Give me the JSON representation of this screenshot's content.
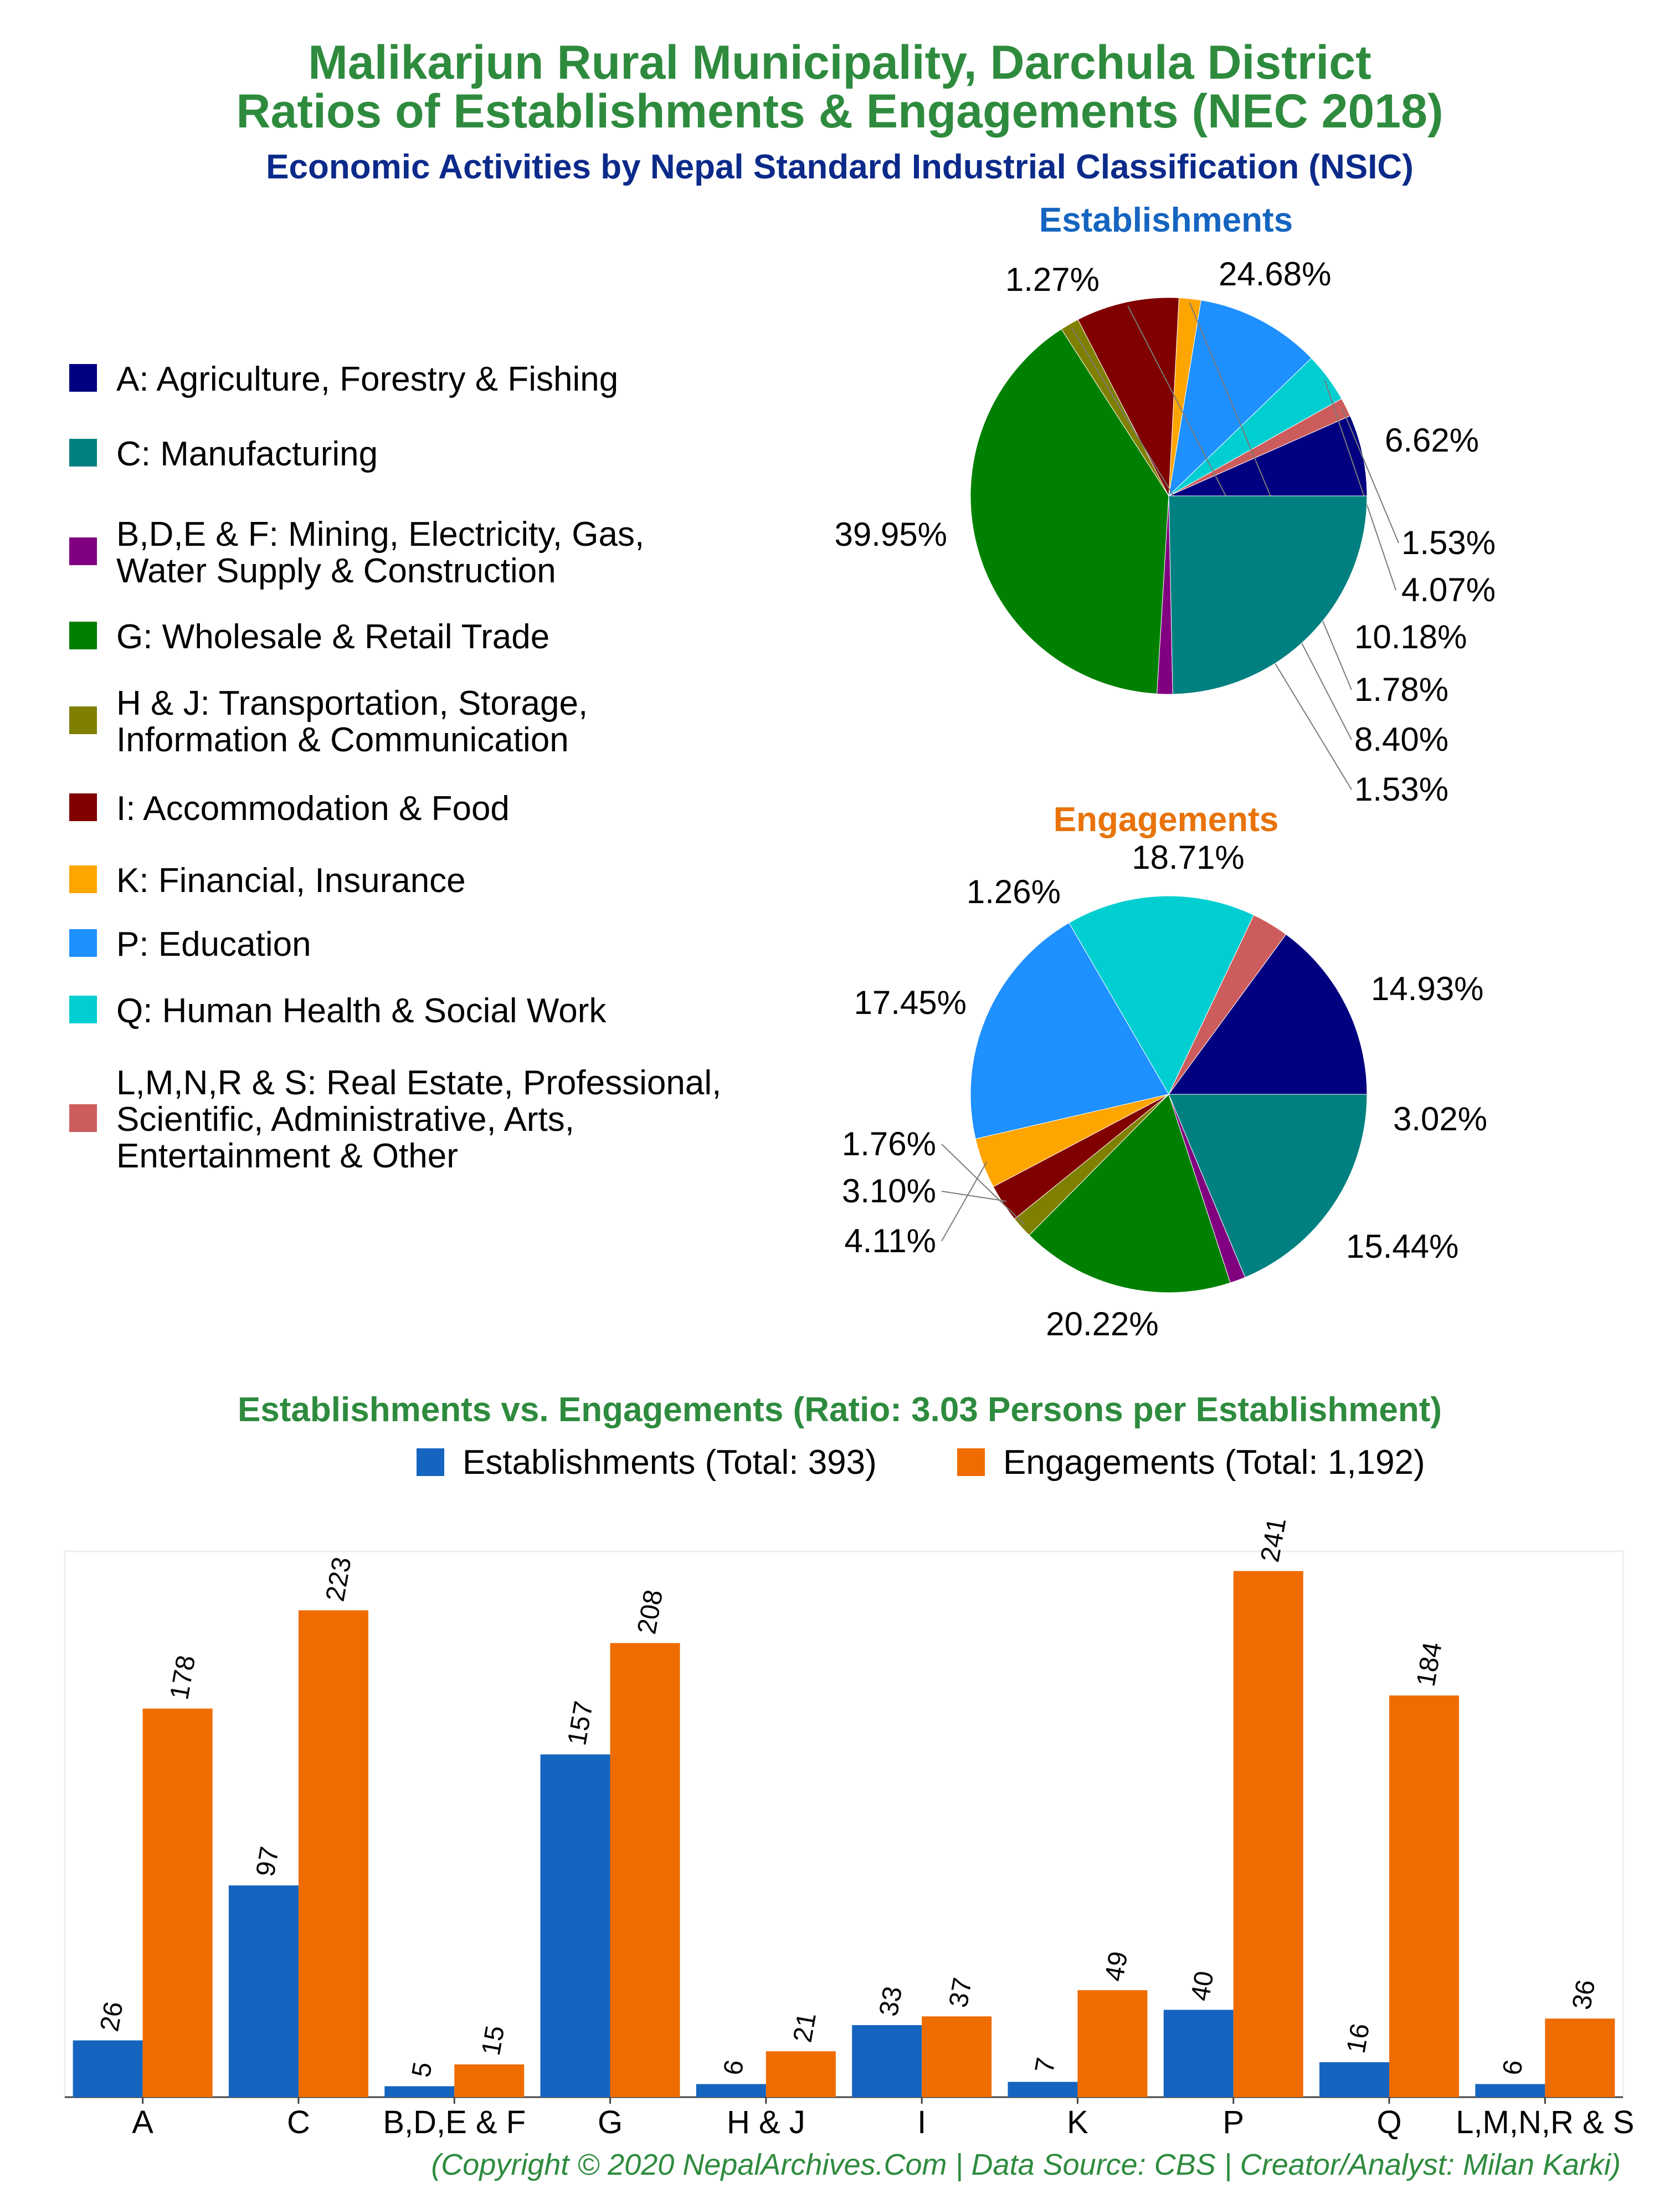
{
  "header": {
    "title_line1": "Malikarjun Rural Municipality, Darchula District",
    "title_line2": "Ratios of Establishments & Engagements (NEC 2018)",
    "subtitle": "Economic Activities by Nepal Standard Industrial Classification (NSIC)"
  },
  "colors": {
    "title": "#2e8b3e",
    "subtitle": "#0b2a8a",
    "establishments_title": "#1565c0",
    "engagements_title": "#e8730a",
    "bar_establishments": "#1565c0",
    "bar_engagements": "#ef6c00"
  },
  "legend": {
    "items": [
      {
        "code": "A",
        "lines": [
          "A: Agriculture, Forestry & Fishing"
        ],
        "color": "#000080"
      },
      {
        "code": "C",
        "lines": [
          "C: Manufacturing"
        ],
        "color": "#008080"
      },
      {
        "code": "BDEF",
        "lines": [
          "B,D,E & F: Mining, Electricity, Gas,",
          "Water Supply & Construction"
        ],
        "color": "#800080"
      },
      {
        "code": "G",
        "lines": [
          "G: Wholesale & Retail Trade"
        ],
        "color": "#008000"
      },
      {
        "code": "HJ",
        "lines": [
          "H & J: Transportation, Storage,",
          "Information & Communication"
        ],
        "color": "#808000"
      },
      {
        "code": "I",
        "lines": [
          "I: Accommodation & Food"
        ],
        "color": "#800000"
      },
      {
        "code": "K",
        "lines": [
          "K: Financial, Insurance"
        ],
        "color": "#ffa500"
      },
      {
        "code": "P",
        "lines": [
          "P: Education"
        ],
        "color": "#1e90ff"
      },
      {
        "code": "Q",
        "lines": [
          "Q: Human Health & Social Work"
        ],
        "color": "#00ced1"
      },
      {
        "code": "LMNRS",
        "lines": [
          "L,M,N,R & S: Real Estate, Professional,",
          "Scientific, Administrative, Arts,",
          "Entertainment & Other"
        ],
        "color": "#cd5c5c"
      }
    ]
  },
  "chart_data": [
    {
      "type": "pie",
      "title": "Establishments",
      "slices": [
        {
          "category": "A",
          "value": 6.62,
          "label": "6.62%"
        },
        {
          "category": "LMNRS",
          "value": 1.53,
          "label": "1.53%"
        },
        {
          "category": "Q",
          "value": 4.07,
          "label": "4.07%"
        },
        {
          "category": "P",
          "value": 10.18,
          "label": "10.18%"
        },
        {
          "category": "K",
          "value": 1.78,
          "label": "1.78%"
        },
        {
          "category": "I",
          "value": 8.4,
          "label": "8.40%"
        },
        {
          "category": "HJ",
          "value": 1.53,
          "label": "1.53%"
        },
        {
          "category": "G",
          "value": 39.95,
          "label": "39.95%"
        },
        {
          "category": "BDEF",
          "value": 1.27,
          "label": "1.27%"
        },
        {
          "category": "C",
          "value": 24.68,
          "label": "24.68%"
        }
      ]
    },
    {
      "type": "pie",
      "title": "Engagements",
      "slices": [
        {
          "category": "A",
          "value": 14.93,
          "label": "14.93%"
        },
        {
          "category": "LMNRS",
          "value": 3.02,
          "label": "3.02%"
        },
        {
          "category": "Q",
          "value": 15.44,
          "label": "15.44%"
        },
        {
          "category": "P",
          "value": 20.22,
          "label": "20.22%"
        },
        {
          "category": "K",
          "value": 4.11,
          "label": "4.11%"
        },
        {
          "category": "I",
          "value": 3.1,
          "label": "3.10%"
        },
        {
          "category": "HJ",
          "value": 1.76,
          "label": "1.76%"
        },
        {
          "category": "G",
          "value": 17.45,
          "label": "17.45%"
        },
        {
          "category": "BDEF",
          "value": 1.26,
          "label": "1.26%"
        },
        {
          "category": "C",
          "value": 18.71,
          "label": "18.71%"
        }
      ]
    },
    {
      "type": "bar",
      "title": "Establishments vs. Engagements (Ratio: 3.03 Persons per Establishment)",
      "categories": [
        "A",
        "C",
        "B,D,E & F",
        "G",
        "H & J",
        "I",
        "K",
        "P",
        "Q",
        "L,M,N,R & S"
      ],
      "series": [
        {
          "name": "Establishments (Total: 393)",
          "values": [
            26,
            97,
            5,
            157,
            6,
            33,
            7,
            40,
            16,
            6
          ]
        },
        {
          "name": "Engagements (Total: 1,192)",
          "values": [
            178,
            223,
            15,
            208,
            21,
            37,
            49,
            241,
            184,
            36
          ]
        }
      ],
      "ylim": [
        0,
        250
      ],
      "legend_position": "top"
    }
  ],
  "footer": {
    "credit": "(Copyright © 2020 NepalArchives.Com | Data Source: CBS | Creator/Analyst: Milan Karki)"
  }
}
